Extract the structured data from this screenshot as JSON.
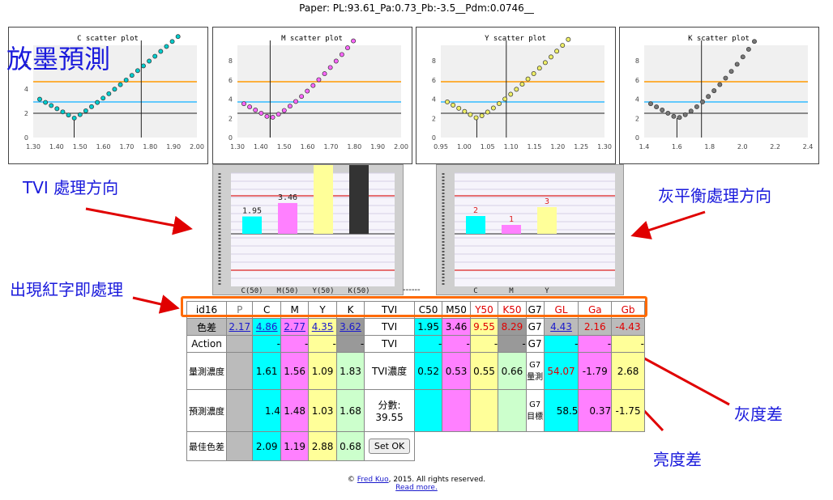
{
  "paper_title": "Paper: PL:93.61_Pa:0.73_Pb:-3.5__Pdm:0.0746__",
  "annotations": {
    "prediction": "放墨預測",
    "tvi_direction": "TVI 處理方向",
    "gray_balance_direction": "灰平衡處理方向",
    "red_text": "出現紅字即處理",
    "gray_diff": "灰度差",
    "lightness_diff": "亮度差"
  },
  "scatter_plots": [
    {
      "title": "C scatter plot",
      "yticks": [
        "0",
        "2",
        "4",
        "6"
      ],
      "xticks": [
        "1.30",
        "1.40",
        "1.50",
        "1.60",
        "1.70",
        "1.80",
        "1.90",
        "2.00"
      ],
      "color": "#00cccc"
    },
    {
      "title": "M scatter plot",
      "yticks": [
        "0",
        "2",
        "4",
        "6",
        "8"
      ],
      "xticks": [
        "1.30",
        "1.40",
        "1.50",
        "1.60",
        "1.70",
        "1.80",
        "1.90",
        "2.00"
      ],
      "color": "#ff66ff"
    },
    {
      "title": "Y scatter plot",
      "yticks": [
        "0",
        "2",
        "4",
        "6",
        "8"
      ],
      "xticks": [
        "0.95",
        "1.00",
        "1.05",
        "1.10",
        "1.15",
        "1.20",
        "1.25",
        "1.30"
      ],
      "color": "#eeee66"
    },
    {
      "title": "K scatter plot",
      "yticks": [
        "0",
        "2",
        "4",
        "6",
        "8"
      ],
      "xticks": [
        "1.4",
        "1.6",
        "1.8",
        "2.0",
        "2.2",
        "2.4"
      ],
      "color": "#777777"
    }
  ],
  "tvi_bars": {
    "labels": [
      "C(50)",
      "M(50)",
      "Y(50)",
      "K(50)"
    ],
    "values": [
      1.95,
      3.46,
      9.55,
      8.29
    ],
    "value_labels": [
      "1.95",
      "3.46",
      "",
      ""
    ],
    "colors": [
      "#00ffff",
      "#ff80ff",
      "#ffff99",
      "#333333"
    ]
  },
  "separator": "------",
  "gray_bars": {
    "labels": [
      "C",
      "M",
      "Y"
    ],
    "values": [
      2,
      1,
      3
    ],
    "value_labels": [
      "2",
      "1",
      "3"
    ],
    "colors": [
      "#00ffff",
      "#ff80ff",
      "#ffff99"
    ]
  },
  "table": {
    "header": {
      "id": "id16",
      "p": "P",
      "c": "C",
      "m": "M",
      "y": "Y",
      "k": "K",
      "tvi": "TVI",
      "c50": "C50",
      "m50": "M50",
      "y50": "Y50",
      "k50": "K50",
      "g7": "G7",
      "gl": "GL",
      "ga": "Ga",
      "gb": "Gb"
    },
    "diff_row": {
      "label": "色差",
      "p": "2.17",
      "c": "4.86",
      "m": "2.77",
      "y": "4.35",
      "k": "3.62",
      "tvi": "TVI",
      "c50": "1.95",
      "m50": "3.46",
      "y50": "9.55",
      "k50": "8.29",
      "g7": "G7",
      "gl": "4.43",
      "ga": "2.16",
      "gb": "-4.43"
    },
    "action_row": {
      "label": "Action",
      "c": "-",
      "m": "-",
      "y": "-",
      "k": "-",
      "tvi": "TVI",
      "c50": "-",
      "m50": "-",
      "y50": "-",
      "k50": "-",
      "g7": "G7",
      "gl": "-",
      "ga": "-",
      "gb": "-"
    },
    "measured_row": {
      "label": "量測濃度",
      "c": "1.61",
      "m": "1.56",
      "y": "1.09",
      "k": "1.83",
      "tvi": "TVI濃度",
      "c50": "0.52",
      "m50": "0.53",
      "y50": "0.55",
      "k50": "0.66",
      "g7": "G7量測",
      "gl": "54.07",
      "ga": "-1.79",
      "gb": "2.68"
    },
    "predicted_row": {
      "label": "預測濃度",
      "c": "1.4",
      "m": "1.48",
      "y": "1.03",
      "k": "1.68",
      "score_label": "分數:",
      "score": "39.55",
      "g7": "G7目標",
      "gl": "58.5",
      "ga": "0.37",
      "gb": "-1.75"
    },
    "best_row": {
      "label": "最佳色差",
      "c": "2.09",
      "m": "1.19",
      "y": "2.88",
      "k": "0.68",
      "button": "Set OK"
    }
  },
  "footer": {
    "copyright": "©",
    "author": "Fred Kuo",
    "rights": ", 2015. All rights reserved.",
    "read_more": "Read more."
  }
}
